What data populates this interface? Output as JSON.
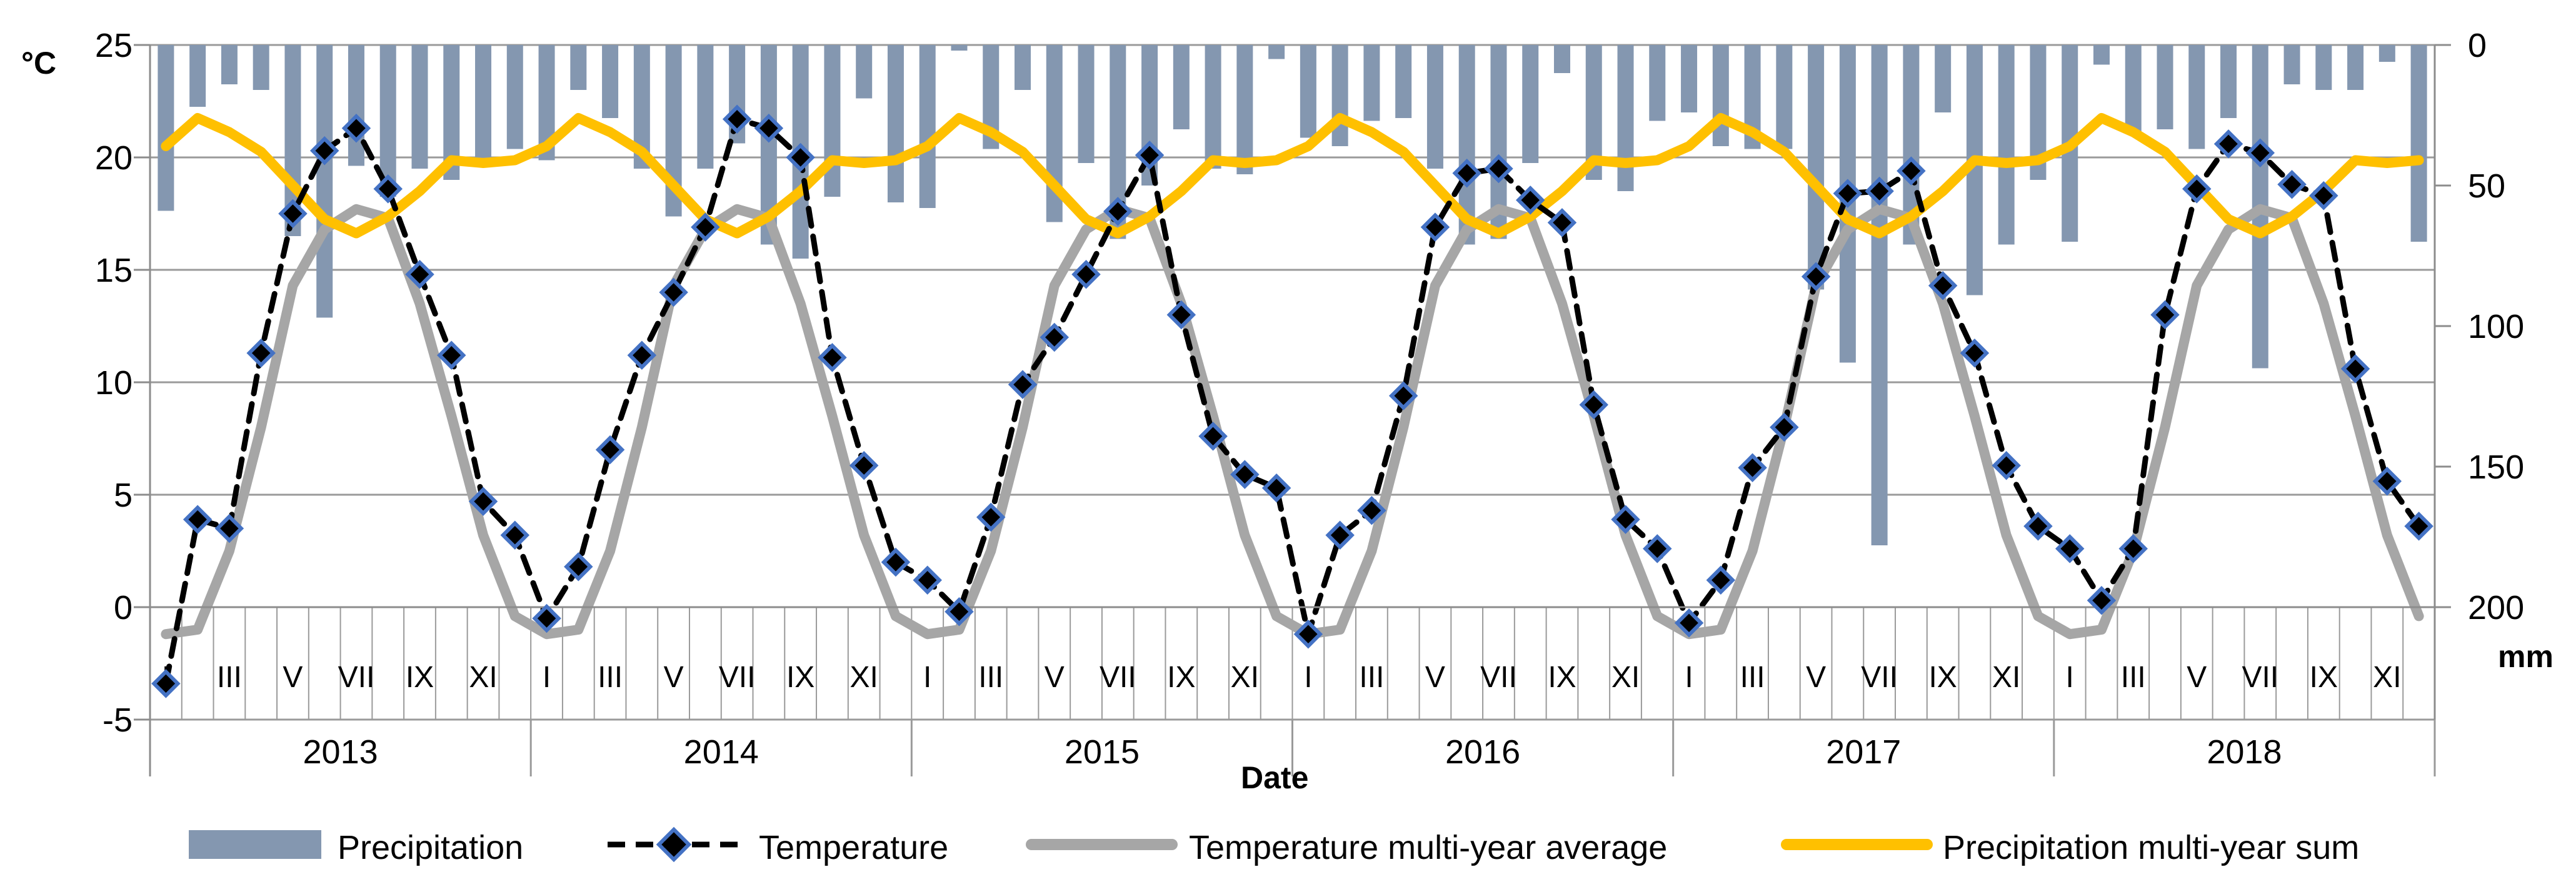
{
  "chart_data": {
    "type": "bar",
    "subtype": "combo-bar-line-dual-axis",
    "title": "",
    "xlabel": "Date",
    "grid": true,
    "years": [
      "2013",
      "2014",
      "2015",
      "2016",
      "2017",
      "2018"
    ],
    "month_tick_labels": [
      "I",
      "III",
      "V",
      "VII",
      "IX",
      "XI"
    ],
    "left_axis": {
      "unit": "°C",
      "min": -5,
      "max": 25,
      "ticks": [
        "25",
        "20",
        "15",
        "10",
        "5",
        "0",
        "-5"
      ]
    },
    "right_axis": {
      "unit": "mm",
      "min": 0,
      "max": 240,
      "inverted": true,
      "ticks": [
        "0",
        "50",
        "100",
        "150",
        "200"
      ]
    },
    "series": [
      {
        "name": "Precipitation",
        "type": "bar",
        "axis": "right",
        "unit": "mm",
        "color": "#8497B0",
        "monthly_values_by_year": {
          "2013": [
            59,
            22,
            14,
            16,
            68,
            97,
            43,
            54,
            44,
            48,
            40,
            37
          ],
          "2014": [
            41,
            16,
            26,
            44,
            61,
            44,
            35,
            71,
            76,
            54,
            19,
            56
          ],
          "2015": [
            58,
            2,
            37,
            16,
            63,
            42,
            69,
            50,
            30,
            44,
            46,
            5
          ],
          "2016": [
            33,
            36,
            27,
            26,
            44,
            71,
            69,
            42,
            10,
            48,
            52,
            27
          ],
          "2017": [
            24,
            36,
            37,
            37,
            87,
            113,
            178,
            71,
            24,
            89,
            71,
            48
          ],
          "2018": [
            70,
            7,
            31,
            30,
            37,
            26,
            115,
            14,
            16,
            16,
            6,
            70
          ]
        }
      },
      {
        "name": "Temperature",
        "type": "line",
        "style": "dashed-with-diamond-markers",
        "axis": "left",
        "unit": "°C",
        "line_color": "#000000",
        "marker_fill": "#000000",
        "marker_stroke": "#4472C4",
        "monthly_values_by_year": {
          "2013": [
            -3.4,
            3.9,
            3.5,
            11.3,
            17.5,
            20.3,
            21.3,
            18.6,
            14.8,
            11.2,
            4.7,
            3.2
          ],
          "2014": [
            -0.5,
            1.8,
            7.0,
            11.2,
            14.0,
            16.9,
            21.7,
            21.3,
            20.0,
            11.1,
            6.3,
            2.0
          ],
          "2015": [
            1.2,
            -0.2,
            4.0,
            9.9,
            12.0,
            14.8,
            17.6,
            20.1,
            13.0,
            7.6,
            5.9,
            5.3
          ],
          "2016": [
            -1.2,
            3.2,
            4.3,
            9.4,
            16.9,
            19.3,
            19.5,
            18.1,
            17.1,
            9.0,
            3.9,
            2.6
          ],
          "2017": [
            -0.7,
            1.2,
            6.2,
            8.0,
            14.7,
            18.4,
            18.5,
            19.4,
            14.3,
            11.3,
            6.3,
            3.6
          ],
          "2018": [
            2.6,
            0.3,
            2.6,
            13.0,
            18.6,
            20.6,
            20.2,
            18.8,
            18.3,
            10.6,
            5.6,
            3.6
          ]
        }
      },
      {
        "name": "Temperature multi-year average",
        "type": "line",
        "axis": "left",
        "unit": "°C",
        "color": "#A6A6A6",
        "monthly_values": [
          -1.2,
          -1.0,
          2.5,
          8.0,
          14.3,
          16.8,
          17.7,
          17.3,
          13.5,
          8.5,
          3.2,
          -0.4
        ]
      },
      {
        "name": "Precipitation multi-year sum",
        "type": "line",
        "axis": "right",
        "unit": "mm",
        "color": "#FFC000",
        "monthly_values": [
          36,
          26,
          31,
          38,
          50,
          62,
          67,
          61,
          52,
          41,
          42,
          41
        ]
      }
    ],
    "colors": {
      "bar": "#8497B0",
      "temperature_line": "#000000",
      "marker_stroke": "#4472C4",
      "avg_line": "#A6A6A6",
      "sum_line": "#FFC000",
      "gridline": "#9A9A9A",
      "axis": "#8C8C8C",
      "text": "#000000"
    }
  }
}
